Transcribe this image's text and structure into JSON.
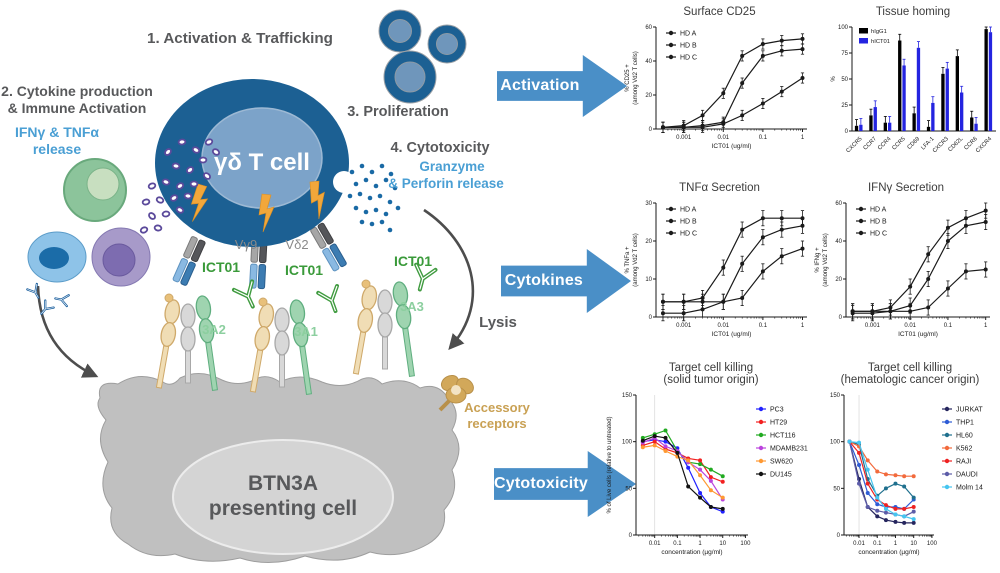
{
  "colors": {
    "arrow_blue": "#4a8fc7",
    "label_gray": "#58595b",
    "label_blue": "#4a9fd4",
    "ict01_green": "#3a9a3a",
    "isoform_green": "#8ccf9f",
    "accessory_tan": "#c9a154",
    "cell_blue": "#1c6093",
    "nucleus_blue": "#7ca3c9"
  },
  "diagram": {
    "step1": "1. Activation & Trafficking",
    "step2_line1": "2. Cytokine production",
    "step2_line2": "& Immune Activation",
    "step2_sub1": "IFNγ & TNFα",
    "step2_sub2": "release",
    "step3": "3. Proliferation",
    "step4": "4. Cytotoxicity",
    "step4_sub1": "Granzyme",
    "step4_sub2": "& Perforin release",
    "cell_label": "γδ T cell",
    "vg9": "Vγ9",
    "vd2": "Vδ2",
    "ict01_a": "ICT01",
    "ict01_b": "ICT01",
    "ict01_c": "ICT01",
    "iso_3a2": "3A2",
    "iso_3a1": "3A1",
    "iso_3a3": "3A3",
    "lysis": "Lysis",
    "accessory_line1": "Accessory",
    "accessory_line2": "receptors",
    "presenting_line1": "BTN3A",
    "presenting_line2": "presenting cell"
  },
  "arrows": [
    {
      "label": "Activation"
    },
    {
      "label": "Cytokines"
    },
    {
      "label": "Cytotoxicity"
    }
  ],
  "chart_data": [
    {
      "type": "line",
      "title": "Surface CD25",
      "xlabel": "ICT01 (ug/ml)",
      "ylabel": "% CD25 +\n(among Vd2 T cells)",
      "xscale": "log",
      "xrange": [
        0.0002,
        1.3
      ],
      "x": [
        0.0003,
        0.001,
        0.003,
        0.01,
        0.03,
        0.1,
        0.3,
        1
      ],
      "ylim": [
        0,
        60
      ],
      "yticks": [
        0,
        20,
        40,
        60
      ],
      "xticks": [
        {
          "v": 0.001,
          "label": "0.001"
        },
        {
          "v": 0.01,
          "label": "0.01"
        },
        {
          "v": 0.1,
          "label": "0.1"
        },
        {
          "v": 1,
          "label": "1"
        }
      ],
      "err": 3,
      "legend_pos": "inside",
      "ml": 34,
      "mr": 10,
      "series": [
        {
          "name": "HD A",
          "color": "#1a1a1a",
          "values": [
            1,
            2,
            8,
            21,
            43,
            50,
            52,
            53
          ]
        },
        {
          "name": "HD B",
          "color": "#1a1a1a",
          "values": [
            1,
            1,
            2,
            4,
            27,
            43,
            46,
            47
          ]
        },
        {
          "name": "HD C",
          "color": "#1a1a1a",
          "values": [
            1,
            1,
            1,
            3,
            8,
            15,
            22,
            30
          ]
        }
      ]
    },
    {
      "type": "bar",
      "title": "Tissue homing",
      "ylabel": "%",
      "ylim": [
        0,
        100
      ],
      "yticks": [
        0,
        25,
        50,
        75,
        100
      ],
      "err": 6,
      "categories": [
        "CXCR5",
        "CCR7",
        "CCR4",
        "CCR5",
        "CD69",
        "LFA-1",
        "CXCR3",
        "CD62L",
        "CCR6",
        "CXCR4"
      ],
      "series": [
        {
          "name": "hIgG1",
          "color": "#000000",
          "values": [
            5,
            15,
            8,
            87,
            17,
            4,
            55,
            72,
            13,
            98
          ]
        },
        {
          "name": "hICT01",
          "color": "#2424e0",
          "values": [
            6,
            23,
            8,
            63,
            80,
            27,
            60,
            37,
            7,
            95
          ]
        }
      ]
    },
    {
      "type": "line",
      "title": "TNFα Secretion",
      "xlabel": "ICT01 (ug/ml)",
      "ylabel": "% TNFa +\n(among Vd2 T cells)",
      "xscale": "log",
      "xrange": [
        0.0002,
        1.3
      ],
      "x": [
        0.0003,
        0.001,
        0.003,
        0.01,
        0.03,
        0.1,
        0.3,
        1
      ],
      "ylim": [
        0,
        30
      ],
      "yticks": [
        0,
        10,
        20,
        30
      ],
      "xticks": [
        {
          "v": 0.001,
          "label": "0.001"
        },
        {
          "v": 0.01,
          "label": "0.01"
        },
        {
          "v": 0.1,
          "label": "0.1"
        },
        {
          "v": 1,
          "label": "1"
        }
      ],
      "err": 2,
      "legend_pos": "inside",
      "ml": 34,
      "mr": 10,
      "series": [
        {
          "name": "HD A",
          "color": "#1a1a1a",
          "values": [
            4,
            4,
            5,
            13,
            23,
            26,
            26,
            26
          ]
        },
        {
          "name": "HD B",
          "color": "#1a1a1a",
          "values": [
            1,
            1,
            2,
            4,
            14,
            21,
            23,
            24
          ]
        },
        {
          "name": "HD C",
          "color": "#1a1a1a",
          "values": [
            4,
            4,
            4,
            4,
            5,
            12,
            16,
            18
          ]
        }
      ]
    },
    {
      "type": "line",
      "title": "IFNγ Secretion",
      "xlabel": "ICT01 (ug/ml)",
      "ylabel": "% IFNg +\n(among Vd2 T cells)",
      "xscale": "log",
      "xrange": [
        0.0002,
        1.3
      ],
      "x": [
        0.0003,
        0.001,
        0.003,
        0.01,
        0.03,
        0.1,
        0.3,
        1
      ],
      "ylim": [
        0,
        60
      ],
      "yticks": [
        0,
        20,
        40,
        60
      ],
      "xticks": [
        {
          "v": 0.001,
          "label": "0.001"
        },
        {
          "v": 0.01,
          "label": "0.01"
        },
        {
          "v": 0.1,
          "label": "0.1"
        },
        {
          "v": 1,
          "label": "1"
        }
      ],
      "err": 4,
      "legend_pos": "inside",
      "ml": 34,
      "mr": 10,
      "series": [
        {
          "name": "HD A",
          "color": "#1a1a1a",
          "values": [
            3,
            3,
            5,
            16,
            33,
            47,
            52,
            56
          ]
        },
        {
          "name": "HD B",
          "color": "#1a1a1a",
          "values": [
            2,
            2,
            3,
            6,
            20,
            40,
            48,
            50
          ]
        },
        {
          "name": "HD C",
          "color": "#1a1a1a",
          "values": [
            3,
            3,
            3,
            3,
            5,
            15,
            24,
            25
          ]
        }
      ]
    },
    {
      "type": "line",
      "title": "Target cell killing\n(solid tumor origin)",
      "xlabel": "concentration (µg/ml)",
      "ylabel": "% of Live cells (relative to untreated)",
      "xscale": "log",
      "xrange": [
        0.0015,
        130
      ],
      "x": [
        0.003,
        0.01,
        0.03,
        0.1,
        0.3,
        1,
        3,
        10
      ],
      "ylim": [
        0,
        150
      ],
      "yticks": [
        0,
        50,
        100,
        150
      ],
      "xticks": [
        {
          "v": 0.01,
          "label": "0.01"
        },
        {
          "v": 0.1,
          "label": "0.1"
        },
        {
          "v": 1,
          "label": "1"
        },
        {
          "v": 10,
          "label": "10"
        },
        {
          "v": 100,
          "label": "100"
        }
      ],
      "legend_pos": "right",
      "vline": 0.01,
      "ml": 34,
      "mr": 72,
      "series": [
        {
          "name": "PC3",
          "color": "#2121ff",
          "values": [
            100,
            102,
            100,
            93,
            72,
            45,
            30,
            25
          ]
        },
        {
          "name": "HT29",
          "color": "#f22020",
          "values": [
            96,
            100,
            92,
            88,
            82,
            80,
            62,
            57
          ]
        },
        {
          "name": "HCT116",
          "color": "#21aa21",
          "values": [
            104,
            108,
            112,
            90,
            78,
            76,
            70,
            63
          ]
        },
        {
          "name": "MDAMB231",
          "color": "#bb44dd",
          "values": [
            99,
            104,
            95,
            90,
            78,
            70,
            58,
            38
          ]
        },
        {
          "name": "SW620",
          "color": "#ff9933",
          "values": [
            94,
            96,
            90,
            84,
            80,
            64,
            48,
            40
          ]
        },
        {
          "name": "DU145",
          "color": "#111111",
          "values": [
            101,
            106,
            104,
            88,
            52,
            40,
            30,
            28
          ]
        }
      ]
    },
    {
      "type": "line",
      "title": "Target cell killing\n(hematologic cancer origin)",
      "xlabel": "concentration (µg/ml)",
      "ylabel": "",
      "xscale": "log",
      "xrange": [
        0.0015,
        130
      ],
      "x": [
        0.003,
        0.01,
        0.03,
        0.1,
        0.3,
        1,
        3,
        10
      ],
      "ylim": [
        0,
        150
      ],
      "yticks": [
        0,
        50,
        100,
        150
      ],
      "xticks": [
        {
          "v": 0.01,
          "label": "0.01"
        },
        {
          "v": 0.1,
          "label": "0.1"
        },
        {
          "v": 1,
          "label": "1"
        },
        {
          "v": 10,
          "label": "10"
        },
        {
          "v": 100,
          "label": "100"
        }
      ],
      "legend_pos": "right",
      "vline": 0.01,
      "ml": 24,
      "mr": 66,
      "series": [
        {
          "name": "JURKAT",
          "color": "#26265e",
          "values": [
            100,
            60,
            30,
            20,
            16,
            14,
            13,
            13
          ]
        },
        {
          "name": "THP1",
          "color": "#2e5cd6",
          "values": [
            100,
            75,
            45,
            33,
            30,
            30,
            28,
            38
          ]
        },
        {
          "name": "HL60",
          "color": "#1f708e",
          "values": [
            100,
            97,
            60,
            42,
            50,
            55,
            52,
            40
          ]
        },
        {
          "name": "K562",
          "color": "#f26a3c",
          "values": [
            100,
            95,
            80,
            68,
            65,
            64,
            63,
            63
          ]
        },
        {
          "name": "RAJI",
          "color": "#ee2222",
          "values": [
            100,
            88,
            55,
            38,
            32,
            28,
            28,
            30
          ]
        },
        {
          "name": "DAUDI",
          "color": "#5c5ca8",
          "values": [
            100,
            55,
            30,
            26,
            24,
            22,
            20,
            25
          ]
        },
        {
          "name": "Molm 14",
          "color": "#45c5f0",
          "values": [
            100,
            99,
            70,
            40,
            28,
            22,
            20,
            17
          ]
        }
      ]
    }
  ]
}
